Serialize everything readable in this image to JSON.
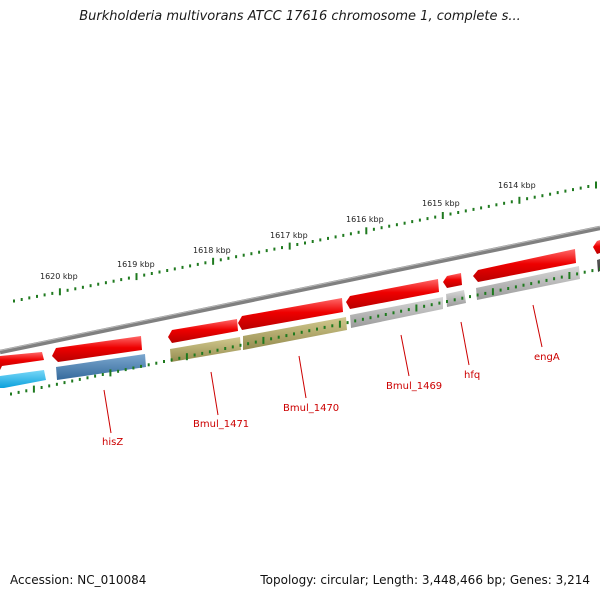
{
  "title": "Burkholderia multivorans ATCC 17616 chromosome 1, complete s...",
  "footer": {
    "accession": "Accession: NC_010084",
    "stats": "Topology: circular; Length: 3,448,466 bp; Genes: 3,214"
  },
  "ruler_labels": [
    "1620 kbp",
    "1619 kbp",
    "1618 kbp",
    "1617 kbp",
    "1616 kbp",
    "1615 kbp",
    "1614 kbp"
  ],
  "gene_labels": [
    "hisZ",
    "Bmul_1471",
    "Bmul_1470",
    "Bmul_1469",
    "hfq",
    "engA"
  ],
  "colors": {
    "backbone": "#7f7f7f",
    "ruler": "#1f7a1f",
    "gene_red": "#e60000",
    "gene_blue": "#4a7fb0",
    "gene_cyan": "#1ab2ea",
    "gene_olive": "#b5ab6a",
    "gene_gray": "#b0b0b0",
    "label": "#cc0000"
  }
}
